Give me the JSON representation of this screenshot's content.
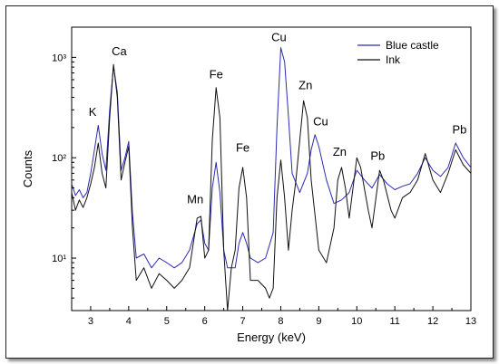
{
  "chart_data": {
    "type": "line",
    "title": "",
    "xlabel": "Energy (keV)",
    "ylabel": "Counts",
    "xlim": [
      2.5,
      13
    ],
    "ylim": [
      3,
      2000
    ],
    "yscale": "log",
    "xticks": [
      3,
      4,
      5,
      6,
      7,
      8,
      9,
      10,
      11,
      12,
      13
    ],
    "yticks": [
      {
        "value": 10,
        "label": "10¹"
      },
      {
        "value": 100,
        "label": "10²"
      },
      {
        "value": 1000,
        "label": "10³"
      }
    ],
    "legend": "top-right",
    "series": [
      {
        "name": "Blue castle",
        "color": "#2b2bb5",
        "points": [
          [
            2.5,
            55
          ],
          [
            2.6,
            42
          ],
          [
            2.7,
            48
          ],
          [
            2.8,
            40
          ],
          [
            2.9,
            45
          ],
          [
            3.0,
            70
          ],
          [
            3.1,
            120
          ],
          [
            3.2,
            210
          ],
          [
            3.3,
            110
          ],
          [
            3.4,
            75
          ],
          [
            3.5,
            300
          ],
          [
            3.6,
            820
          ],
          [
            3.7,
            450
          ],
          [
            3.8,
            75
          ],
          [
            3.9,
            100
          ],
          [
            4.0,
            145
          ],
          [
            4.1,
            28
          ],
          [
            4.2,
            10
          ],
          [
            4.4,
            11
          ],
          [
            4.6,
            8
          ],
          [
            4.8,
            10
          ],
          [
            5.0,
            9
          ],
          [
            5.2,
            8
          ],
          [
            5.4,
            9
          ],
          [
            5.6,
            12
          ],
          [
            5.8,
            22
          ],
          [
            5.9,
            24
          ],
          [
            6.0,
            14
          ],
          [
            6.1,
            12
          ],
          [
            6.2,
            50
          ],
          [
            6.3,
            90
          ],
          [
            6.4,
            45
          ],
          [
            6.5,
            12
          ],
          [
            6.6,
            8
          ],
          [
            6.8,
            8
          ],
          [
            6.9,
            14
          ],
          [
            7.0,
            18
          ],
          [
            7.1,
            14
          ],
          [
            7.2,
            10
          ],
          [
            7.4,
            9
          ],
          [
            7.6,
            10
          ],
          [
            7.8,
            18
          ],
          [
            7.9,
            200
          ],
          [
            8.0,
            1250
          ],
          [
            8.1,
            900
          ],
          [
            8.2,
            260
          ],
          [
            8.3,
            70
          ],
          [
            8.5,
            45
          ],
          [
            8.7,
            70
          ],
          [
            8.8,
            120
          ],
          [
            8.9,
            170
          ],
          [
            9.0,
            130
          ],
          [
            9.2,
            60
          ],
          [
            9.4,
            35
          ],
          [
            9.6,
            38
          ],
          [
            9.8,
            45
          ],
          [
            10.0,
            75
          ],
          [
            10.2,
            60
          ],
          [
            10.4,
            50
          ],
          [
            10.6,
            68
          ],
          [
            10.8,
            55
          ],
          [
            11.0,
            48
          ],
          [
            11.2,
            52
          ],
          [
            11.4,
            55
          ],
          [
            11.6,
            70
          ],
          [
            11.8,
            100
          ],
          [
            12.0,
            75
          ],
          [
            12.2,
            65
          ],
          [
            12.4,
            80
          ],
          [
            12.6,
            140
          ],
          [
            12.8,
            100
          ],
          [
            13.0,
            80
          ]
        ]
      },
      {
        "name": "Ink",
        "color": "#111111",
        "points": [
          [
            2.5,
            45
          ],
          [
            2.6,
            30
          ],
          [
            2.7,
            38
          ],
          [
            2.8,
            32
          ],
          [
            2.9,
            40
          ],
          [
            3.0,
            55
          ],
          [
            3.1,
            80
          ],
          [
            3.2,
            140
          ],
          [
            3.3,
            70
          ],
          [
            3.4,
            50
          ],
          [
            3.5,
            250
          ],
          [
            3.6,
            850
          ],
          [
            3.7,
            400
          ],
          [
            3.8,
            60
          ],
          [
            3.9,
            90
          ],
          [
            4.0,
            130
          ],
          [
            4.1,
            20
          ],
          [
            4.2,
            6
          ],
          [
            4.4,
            8
          ],
          [
            4.6,
            5
          ],
          [
            4.8,
            7
          ],
          [
            5.0,
            6
          ],
          [
            5.2,
            5
          ],
          [
            5.4,
            6
          ],
          [
            5.6,
            8
          ],
          [
            5.8,
            25
          ],
          [
            5.9,
            26
          ],
          [
            6.0,
            10
          ],
          [
            6.1,
            12
          ],
          [
            6.2,
            150
          ],
          [
            6.3,
            500
          ],
          [
            6.4,
            250
          ],
          [
            6.5,
            12
          ],
          [
            6.6,
            3
          ],
          [
            6.7,
            8
          ],
          [
            6.8,
            12
          ],
          [
            6.9,
            50
          ],
          [
            7.0,
            80
          ],
          [
            7.1,
            40
          ],
          [
            7.2,
            6
          ],
          [
            7.4,
            6
          ],
          [
            7.6,
            5
          ],
          [
            7.7,
            4
          ],
          [
            7.8,
            5
          ],
          [
            7.9,
            40
          ],
          [
            8.0,
            95
          ],
          [
            8.1,
            40
          ],
          [
            8.2,
            12
          ],
          [
            8.3,
            30
          ],
          [
            8.4,
            60
          ],
          [
            8.5,
            150
          ],
          [
            8.6,
            370
          ],
          [
            8.7,
            250
          ],
          [
            8.8,
            60
          ],
          [
            9.0,
            12
          ],
          [
            9.2,
            9
          ],
          [
            9.4,
            20
          ],
          [
            9.5,
            60
          ],
          [
            9.6,
            80
          ],
          [
            9.7,
            50
          ],
          [
            9.8,
            25
          ],
          [
            10.0,
            100
          ],
          [
            10.1,
            80
          ],
          [
            10.3,
            30
          ],
          [
            10.4,
            20
          ],
          [
            10.6,
            75
          ],
          [
            10.7,
            60
          ],
          [
            10.9,
            30
          ],
          [
            11.0,
            25
          ],
          [
            11.2,
            40
          ],
          [
            11.4,
            45
          ],
          [
            11.6,
            60
          ],
          [
            11.8,
            110
          ],
          [
            12.0,
            60
          ],
          [
            12.2,
            45
          ],
          [
            12.4,
            70
          ],
          [
            12.6,
            120
          ],
          [
            12.8,
            85
          ],
          [
            13.0,
            70
          ]
        ]
      }
    ],
    "annotations": [
      {
        "text": "K",
        "x": 3.05,
        "y": 260
      },
      {
        "text": "Ca",
        "x": 3.75,
        "y": 1050
      },
      {
        "text": "Mn",
        "x": 5.75,
        "y": 35
      },
      {
        "text": "Fe",
        "x": 6.3,
        "y": 620
      },
      {
        "text": "Fe",
        "x": 7.0,
        "y": 115
      },
      {
        "text": "Cu",
        "x": 7.95,
        "y": 1450
      },
      {
        "text": "Zn",
        "x": 8.65,
        "y": 480
      },
      {
        "text": "Cu",
        "x": 9.05,
        "y": 210
      },
      {
        "text": "Zn",
        "x": 9.55,
        "y": 105
      },
      {
        "text": "Pb",
        "x": 10.55,
        "y": 95
      },
      {
        "text": "Pb",
        "x": 12.7,
        "y": 175
      }
    ]
  }
}
